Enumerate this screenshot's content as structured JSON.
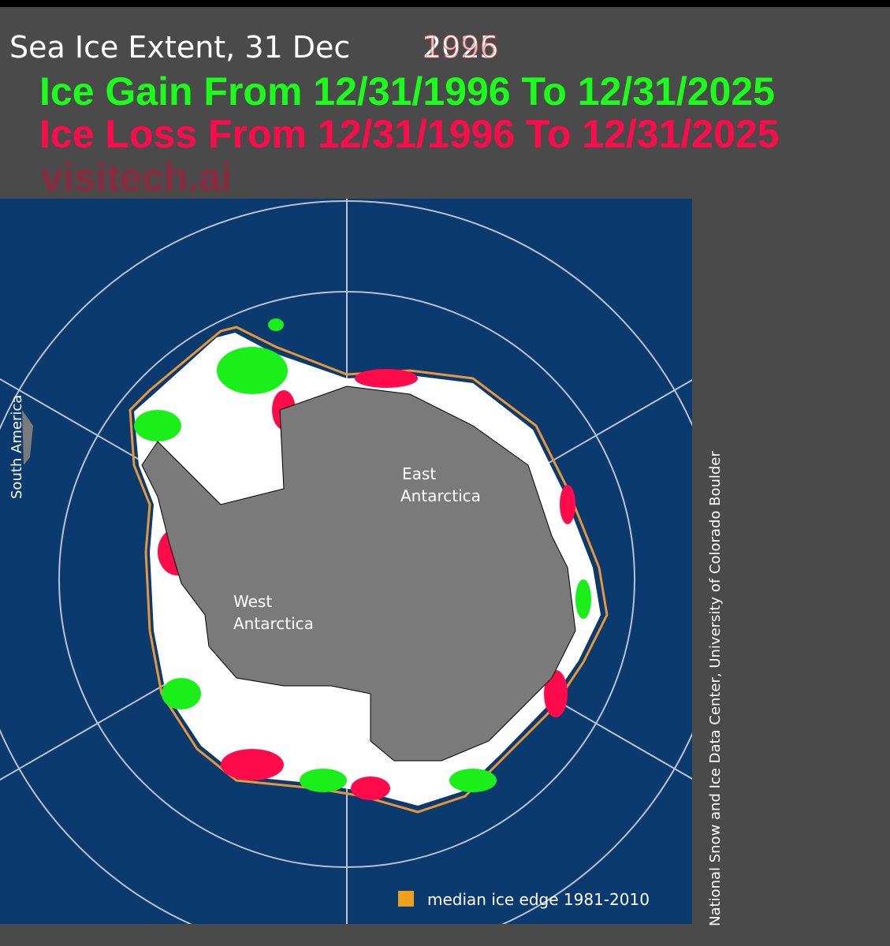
{
  "header": {
    "title": "Sea Ice Extent, 31 Dec",
    "title_years": [
      "2025",
      "1996"
    ],
    "gain": "Ice Gain From 12/31/1996 To 12/31/2025",
    "loss": "Ice Loss From 12/31/1996 To 12/31/2025",
    "watermark": "visitech.ai"
  },
  "map": {
    "east_label": [
      "East",
      "Antarctica"
    ],
    "west_label": [
      "West",
      "Antarctica"
    ],
    "south_america": "South America",
    "legend": "median ice edge 1981-2010",
    "credit": "National Snow and Ice Data Center, University of Colorado Boulder"
  }
}
